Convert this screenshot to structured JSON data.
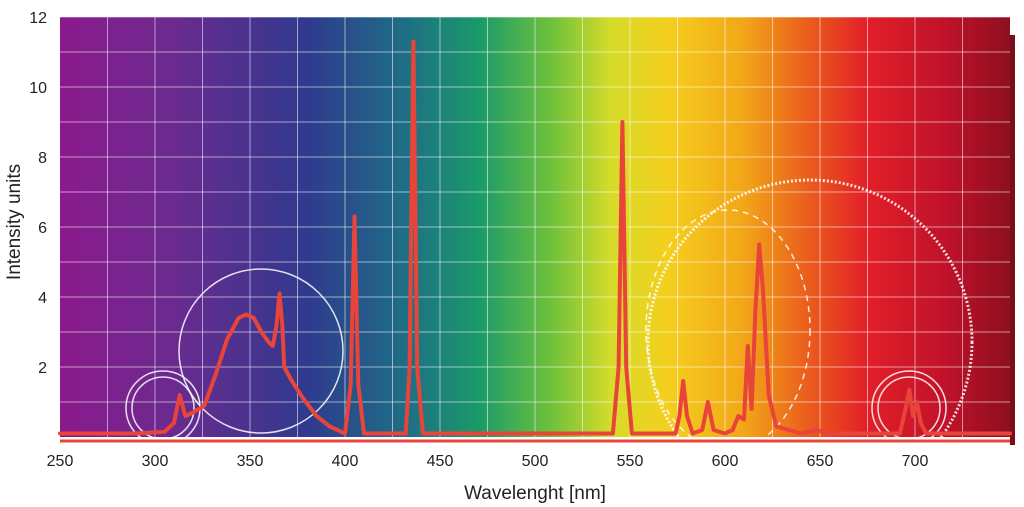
{
  "chart_data": {
    "type": "line",
    "title": "",
    "xlabel": "Wavelenght [nm]",
    "ylabel": "Intensity units",
    "xlim": [
      250,
      750
    ],
    "ylim": [
      0,
      12
    ],
    "x_ticks": [
      250,
      300,
      350,
      400,
      450,
      500,
      550,
      600,
      650,
      700
    ],
    "y_ticks": [
      2,
      4,
      6,
      8,
      10,
      12
    ],
    "grid": true,
    "background": "visible-spectrum gradient (violet to dark red)",
    "series": [
      {
        "name": "",
        "color": "#e8443a",
        "points": [
          [
            250,
            0.1
          ],
          [
            290,
            0.1
          ],
          [
            305,
            0.15
          ],
          [
            310,
            0.4
          ],
          [
            313,
            1.2
          ],
          [
            316,
            0.6
          ],
          [
            320,
            0.7
          ],
          [
            326,
            0.9
          ],
          [
            332,
            1.8
          ],
          [
            338,
            2.8
          ],
          [
            344,
            3.4
          ],
          [
            348,
            3.5
          ],
          [
            352,
            3.4
          ],
          [
            356,
            3.0
          ],
          [
            360,
            2.7
          ],
          [
            362,
            2.6
          ],
          [
            364,
            3.2
          ],
          [
            365.5,
            4.1
          ],
          [
            367,
            3.2
          ],
          [
            368,
            2.0
          ],
          [
            372,
            1.6
          ],
          [
            378,
            1.1
          ],
          [
            385,
            0.6
          ],
          [
            392,
            0.3
          ],
          [
            400,
            0.1
          ],
          [
            403,
            1.5
          ],
          [
            405,
            6.3
          ],
          [
            407,
            1.5
          ],
          [
            410,
            0.1
          ],
          [
            432,
            0.1
          ],
          [
            434,
            2.0
          ],
          [
            436,
            11.3
          ],
          [
            438,
            2.0
          ],
          [
            441,
            0.1
          ],
          [
            541,
            0.1
          ],
          [
            544,
            2.0
          ],
          [
            546,
            9.0
          ],
          [
            548,
            2.0
          ],
          [
            551,
            0.1
          ],
          [
            574,
            0.1
          ],
          [
            576,
            0.6
          ],
          [
            578,
            1.6
          ],
          [
            580,
            0.6
          ],
          [
            583,
            0.1
          ],
          [
            588,
            0.2
          ],
          [
            591,
            1.0
          ],
          [
            594,
            0.2
          ],
          [
            600,
            0.1
          ],
          [
            604,
            0.2
          ],
          [
            607,
            0.6
          ],
          [
            610,
            0.5
          ],
          [
            612,
            2.6
          ],
          [
            614,
            0.8
          ],
          [
            616,
            3.6
          ],
          [
            618,
            5.5
          ],
          [
            620,
            4.2
          ],
          [
            623,
            1.2
          ],
          [
            627,
            0.3
          ],
          [
            640,
            0.1
          ],
          [
            648,
            0.2
          ],
          [
            655,
            0.1
          ],
          [
            692,
            0.1
          ],
          [
            695,
            0.8
          ],
          [
            697,
            1.35
          ],
          [
            699,
            0.6
          ],
          [
            701,
            1.0
          ],
          [
            703,
            0.4
          ],
          [
            706,
            0.1
          ],
          [
            750,
            0.1
          ]
        ]
      }
    ]
  }
}
